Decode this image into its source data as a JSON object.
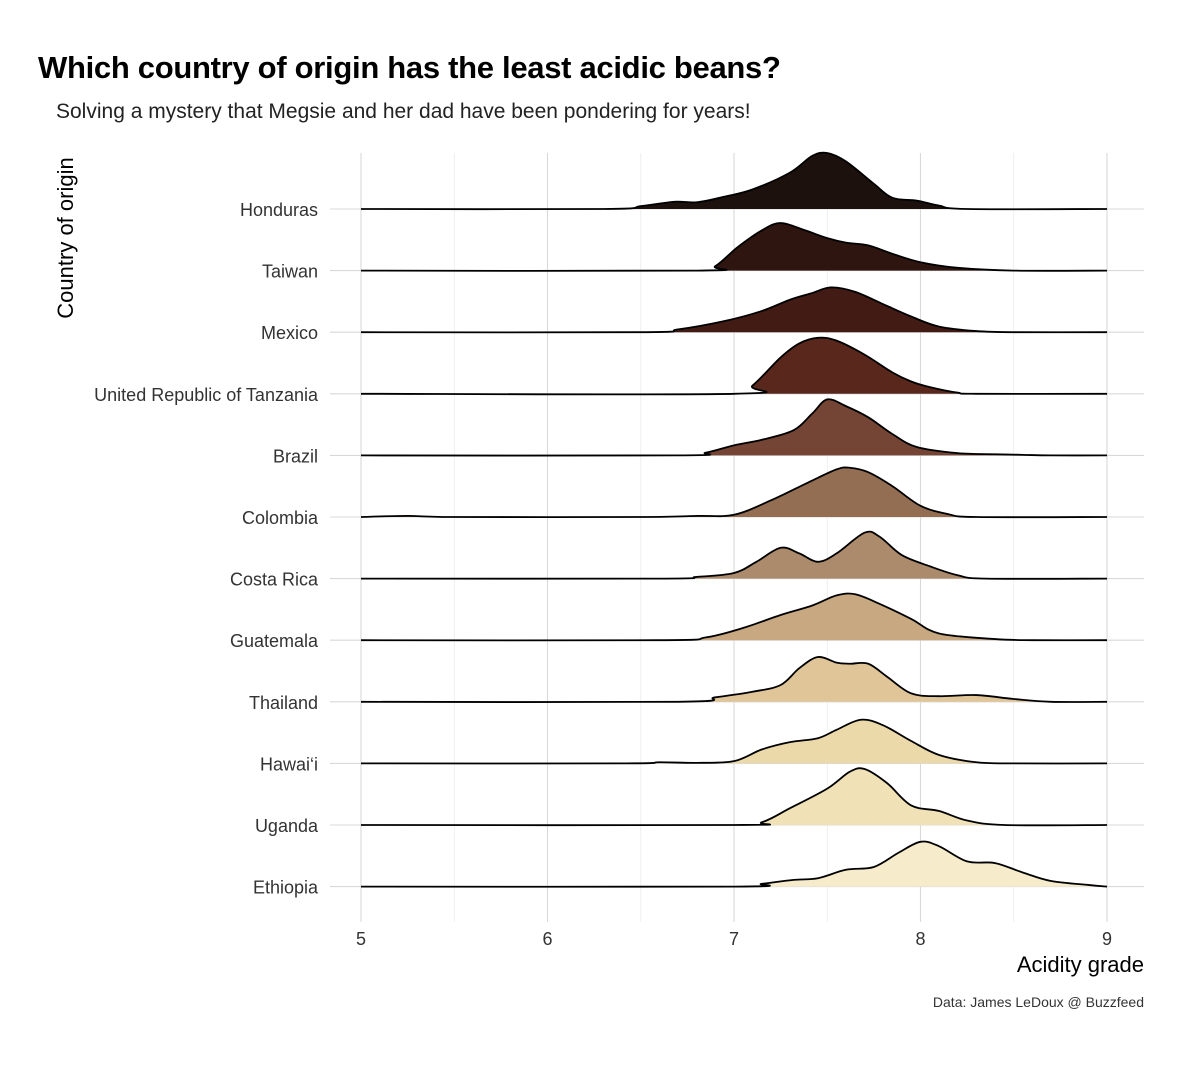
{
  "chart_data": {
    "type": "ridgeline",
    "title": "Which country of origin has the least acidic beans?",
    "subtitle": "Solving a mystery that Megsie and her dad have been pondering for years!",
    "xlabel": "Acidity grade",
    "ylabel": "Country of origin",
    "caption": "Data: James LeDoux @ Buzzfeed",
    "xlim": [
      5,
      9
    ],
    "x_ticks": [
      "5",
      "6",
      "7",
      "8",
      "9"
    ],
    "grid": true,
    "legend": "none",
    "series": [
      {
        "name": "Honduras",
        "color": "#1c110c",
        "points": [
          [
            5,
            0
          ],
          [
            6.3,
            0
          ],
          [
            6.5,
            0.05
          ],
          [
            6.68,
            0.13
          ],
          [
            6.8,
            0.12
          ],
          [
            6.95,
            0.22
          ],
          [
            7.1,
            0.35
          ],
          [
            7.3,
            0.65
          ],
          [
            7.42,
            0.95
          ],
          [
            7.5,
            1.0
          ],
          [
            7.6,
            0.85
          ],
          [
            7.75,
            0.45
          ],
          [
            7.85,
            0.2
          ],
          [
            7.98,
            0.15
          ],
          [
            8.1,
            0.06
          ],
          [
            8.25,
            0
          ],
          [
            9,
            0
          ]
        ]
      },
      {
        "name": "Taiwan",
        "color": "#2e1510",
        "points": [
          [
            5,
            0
          ],
          [
            6.8,
            0
          ],
          [
            6.9,
            0.08
          ],
          [
            7.02,
            0.42
          ],
          [
            7.15,
            0.72
          ],
          [
            7.25,
            0.85
          ],
          [
            7.38,
            0.72
          ],
          [
            7.5,
            0.58
          ],
          [
            7.6,
            0.5
          ],
          [
            7.72,
            0.45
          ],
          [
            7.85,
            0.3
          ],
          [
            8.0,
            0.15
          ],
          [
            8.2,
            0.05
          ],
          [
            8.5,
            0
          ],
          [
            9,
            0
          ]
        ]
      },
      {
        "name": "Mexico",
        "color": "#421c14",
        "points": [
          [
            5,
            0
          ],
          [
            6.5,
            0
          ],
          [
            6.7,
            0.05
          ],
          [
            6.95,
            0.2
          ],
          [
            7.15,
            0.38
          ],
          [
            7.3,
            0.58
          ],
          [
            7.42,
            0.7
          ],
          [
            7.52,
            0.8
          ],
          [
            7.65,
            0.72
          ],
          [
            7.8,
            0.5
          ],
          [
            7.95,
            0.28
          ],
          [
            8.1,
            0.1
          ],
          [
            8.3,
            0.02
          ],
          [
            8.5,
            0
          ],
          [
            9,
            0
          ]
        ]
      },
      {
        "name": "United Republic of Tanzania",
        "color": "#59271c",
        "points": [
          [
            5,
            0
          ],
          [
            7.0,
            0
          ],
          [
            7.1,
            0.15
          ],
          [
            7.25,
            0.65
          ],
          [
            7.35,
            0.9
          ],
          [
            7.45,
            1.0
          ],
          [
            7.55,
            0.95
          ],
          [
            7.7,
            0.7
          ],
          [
            7.85,
            0.38
          ],
          [
            7.95,
            0.22
          ],
          [
            8.05,
            0.12
          ],
          [
            8.2,
            0.02
          ],
          [
            8.3,
            0
          ],
          [
            9,
            0
          ]
        ]
      },
      {
        "name": "Brazil",
        "color": "#744535",
        "points": [
          [
            5,
            0
          ],
          [
            6.7,
            0
          ],
          [
            6.85,
            0.05
          ],
          [
            7.0,
            0.18
          ],
          [
            7.15,
            0.28
          ],
          [
            7.32,
            0.45
          ],
          [
            7.42,
            0.75
          ],
          [
            7.5,
            1.0
          ],
          [
            7.6,
            0.88
          ],
          [
            7.72,
            0.68
          ],
          [
            7.85,
            0.38
          ],
          [
            7.98,
            0.15
          ],
          [
            8.2,
            0.04
          ],
          [
            8.4,
            0.02
          ],
          [
            8.55,
            0.01
          ],
          [
            8.7,
            0
          ],
          [
            9,
            0
          ]
        ]
      },
      {
        "name": "Colombia",
        "color": "#946e52",
        "points": [
          [
            5,
            0
          ],
          [
            5.25,
            0.02
          ],
          [
            5.5,
            0
          ],
          [
            6.5,
            0
          ],
          [
            6.8,
            0.02
          ],
          [
            7.0,
            0.04
          ],
          [
            7.2,
            0.3
          ],
          [
            7.4,
            0.62
          ],
          [
            7.55,
            0.85
          ],
          [
            7.62,
            0.88
          ],
          [
            7.72,
            0.8
          ],
          [
            7.85,
            0.55
          ],
          [
            8.0,
            0.2
          ],
          [
            8.15,
            0.05
          ],
          [
            8.3,
            0
          ],
          [
            9,
            0
          ]
        ]
      },
      {
        "name": "Costa Rica",
        "color": "#ac8b6c",
        "points": [
          [
            5,
            0
          ],
          [
            6.6,
            0
          ],
          [
            6.8,
            0.03
          ],
          [
            7.0,
            0.1
          ],
          [
            7.12,
            0.3
          ],
          [
            7.25,
            0.55
          ],
          [
            7.35,
            0.45
          ],
          [
            7.45,
            0.3
          ],
          [
            7.55,
            0.45
          ],
          [
            7.7,
            0.82
          ],
          [
            7.78,
            0.75
          ],
          [
            7.9,
            0.42
          ],
          [
            8.05,
            0.22
          ],
          [
            8.2,
            0.06
          ],
          [
            8.35,
            0
          ],
          [
            9,
            0
          ]
        ]
      },
      {
        "name": "Guatemala",
        "color": "#c7a881",
        "points": [
          [
            5,
            0
          ],
          [
            6.6,
            0
          ],
          [
            6.85,
            0.05
          ],
          [
            7.05,
            0.22
          ],
          [
            7.25,
            0.45
          ],
          [
            7.42,
            0.62
          ],
          [
            7.55,
            0.8
          ],
          [
            7.65,
            0.82
          ],
          [
            7.78,
            0.65
          ],
          [
            7.95,
            0.38
          ],
          [
            8.1,
            0.12
          ],
          [
            8.4,
            0.02
          ],
          [
            8.6,
            0
          ],
          [
            9,
            0
          ]
        ]
      },
      {
        "name": "Thailand",
        "color": "#e0c598",
        "points": [
          [
            5,
            0
          ],
          [
            6.7,
            0
          ],
          [
            6.9,
            0.08
          ],
          [
            7.1,
            0.18
          ],
          [
            7.25,
            0.3
          ],
          [
            7.35,
            0.6
          ],
          [
            7.45,
            0.8
          ],
          [
            7.55,
            0.7
          ],
          [
            7.62,
            0.68
          ],
          [
            7.72,
            0.68
          ],
          [
            7.82,
            0.45
          ],
          [
            7.95,
            0.15
          ],
          [
            8.1,
            0.1
          ],
          [
            8.3,
            0.12
          ],
          [
            8.5,
            0.05
          ],
          [
            8.7,
            0
          ],
          [
            9,
            0
          ]
        ]
      },
      {
        "name": "Hawai‘i",
        "color": "#ecd9aa",
        "points": [
          [
            5,
            0
          ],
          [
            6.4,
            0
          ],
          [
            6.6,
            0.02
          ],
          [
            6.8,
            0.01
          ],
          [
            7.0,
            0.04
          ],
          [
            7.15,
            0.25
          ],
          [
            7.3,
            0.38
          ],
          [
            7.45,
            0.45
          ],
          [
            7.55,
            0.6
          ],
          [
            7.68,
            0.78
          ],
          [
            7.8,
            0.68
          ],
          [
            7.95,
            0.4
          ],
          [
            8.1,
            0.15
          ],
          [
            8.3,
            0.02
          ],
          [
            8.5,
            0
          ],
          [
            9,
            0
          ]
        ]
      },
      {
        "name": "Uganda",
        "color": "#f0e2b6",
        "points": [
          [
            5,
            0
          ],
          [
            7.0,
            0
          ],
          [
            7.15,
            0.05
          ],
          [
            7.3,
            0.3
          ],
          [
            7.5,
            0.65
          ],
          [
            7.62,
            0.95
          ],
          [
            7.7,
            1.0
          ],
          [
            7.82,
            0.75
          ],
          [
            7.95,
            0.35
          ],
          [
            8.1,
            0.25
          ],
          [
            8.25,
            0.08
          ],
          [
            8.45,
            0
          ],
          [
            9,
            0
          ]
        ]
      },
      {
        "name": "Ethiopia",
        "color": "#f6eccb",
        "points": [
          [
            5,
            0
          ],
          [
            7.0,
            0
          ],
          [
            7.15,
            0.05
          ],
          [
            7.32,
            0.12
          ],
          [
            7.45,
            0.15
          ],
          [
            7.6,
            0.3
          ],
          [
            7.75,
            0.35
          ],
          [
            7.88,
            0.6
          ],
          [
            8.0,
            0.8
          ],
          [
            8.1,
            0.72
          ],
          [
            8.25,
            0.45
          ],
          [
            8.4,
            0.42
          ],
          [
            8.55,
            0.25
          ],
          [
            8.7,
            0.1
          ],
          [
            8.9,
            0.03
          ],
          [
            9,
            0
          ]
        ]
      }
    ]
  }
}
